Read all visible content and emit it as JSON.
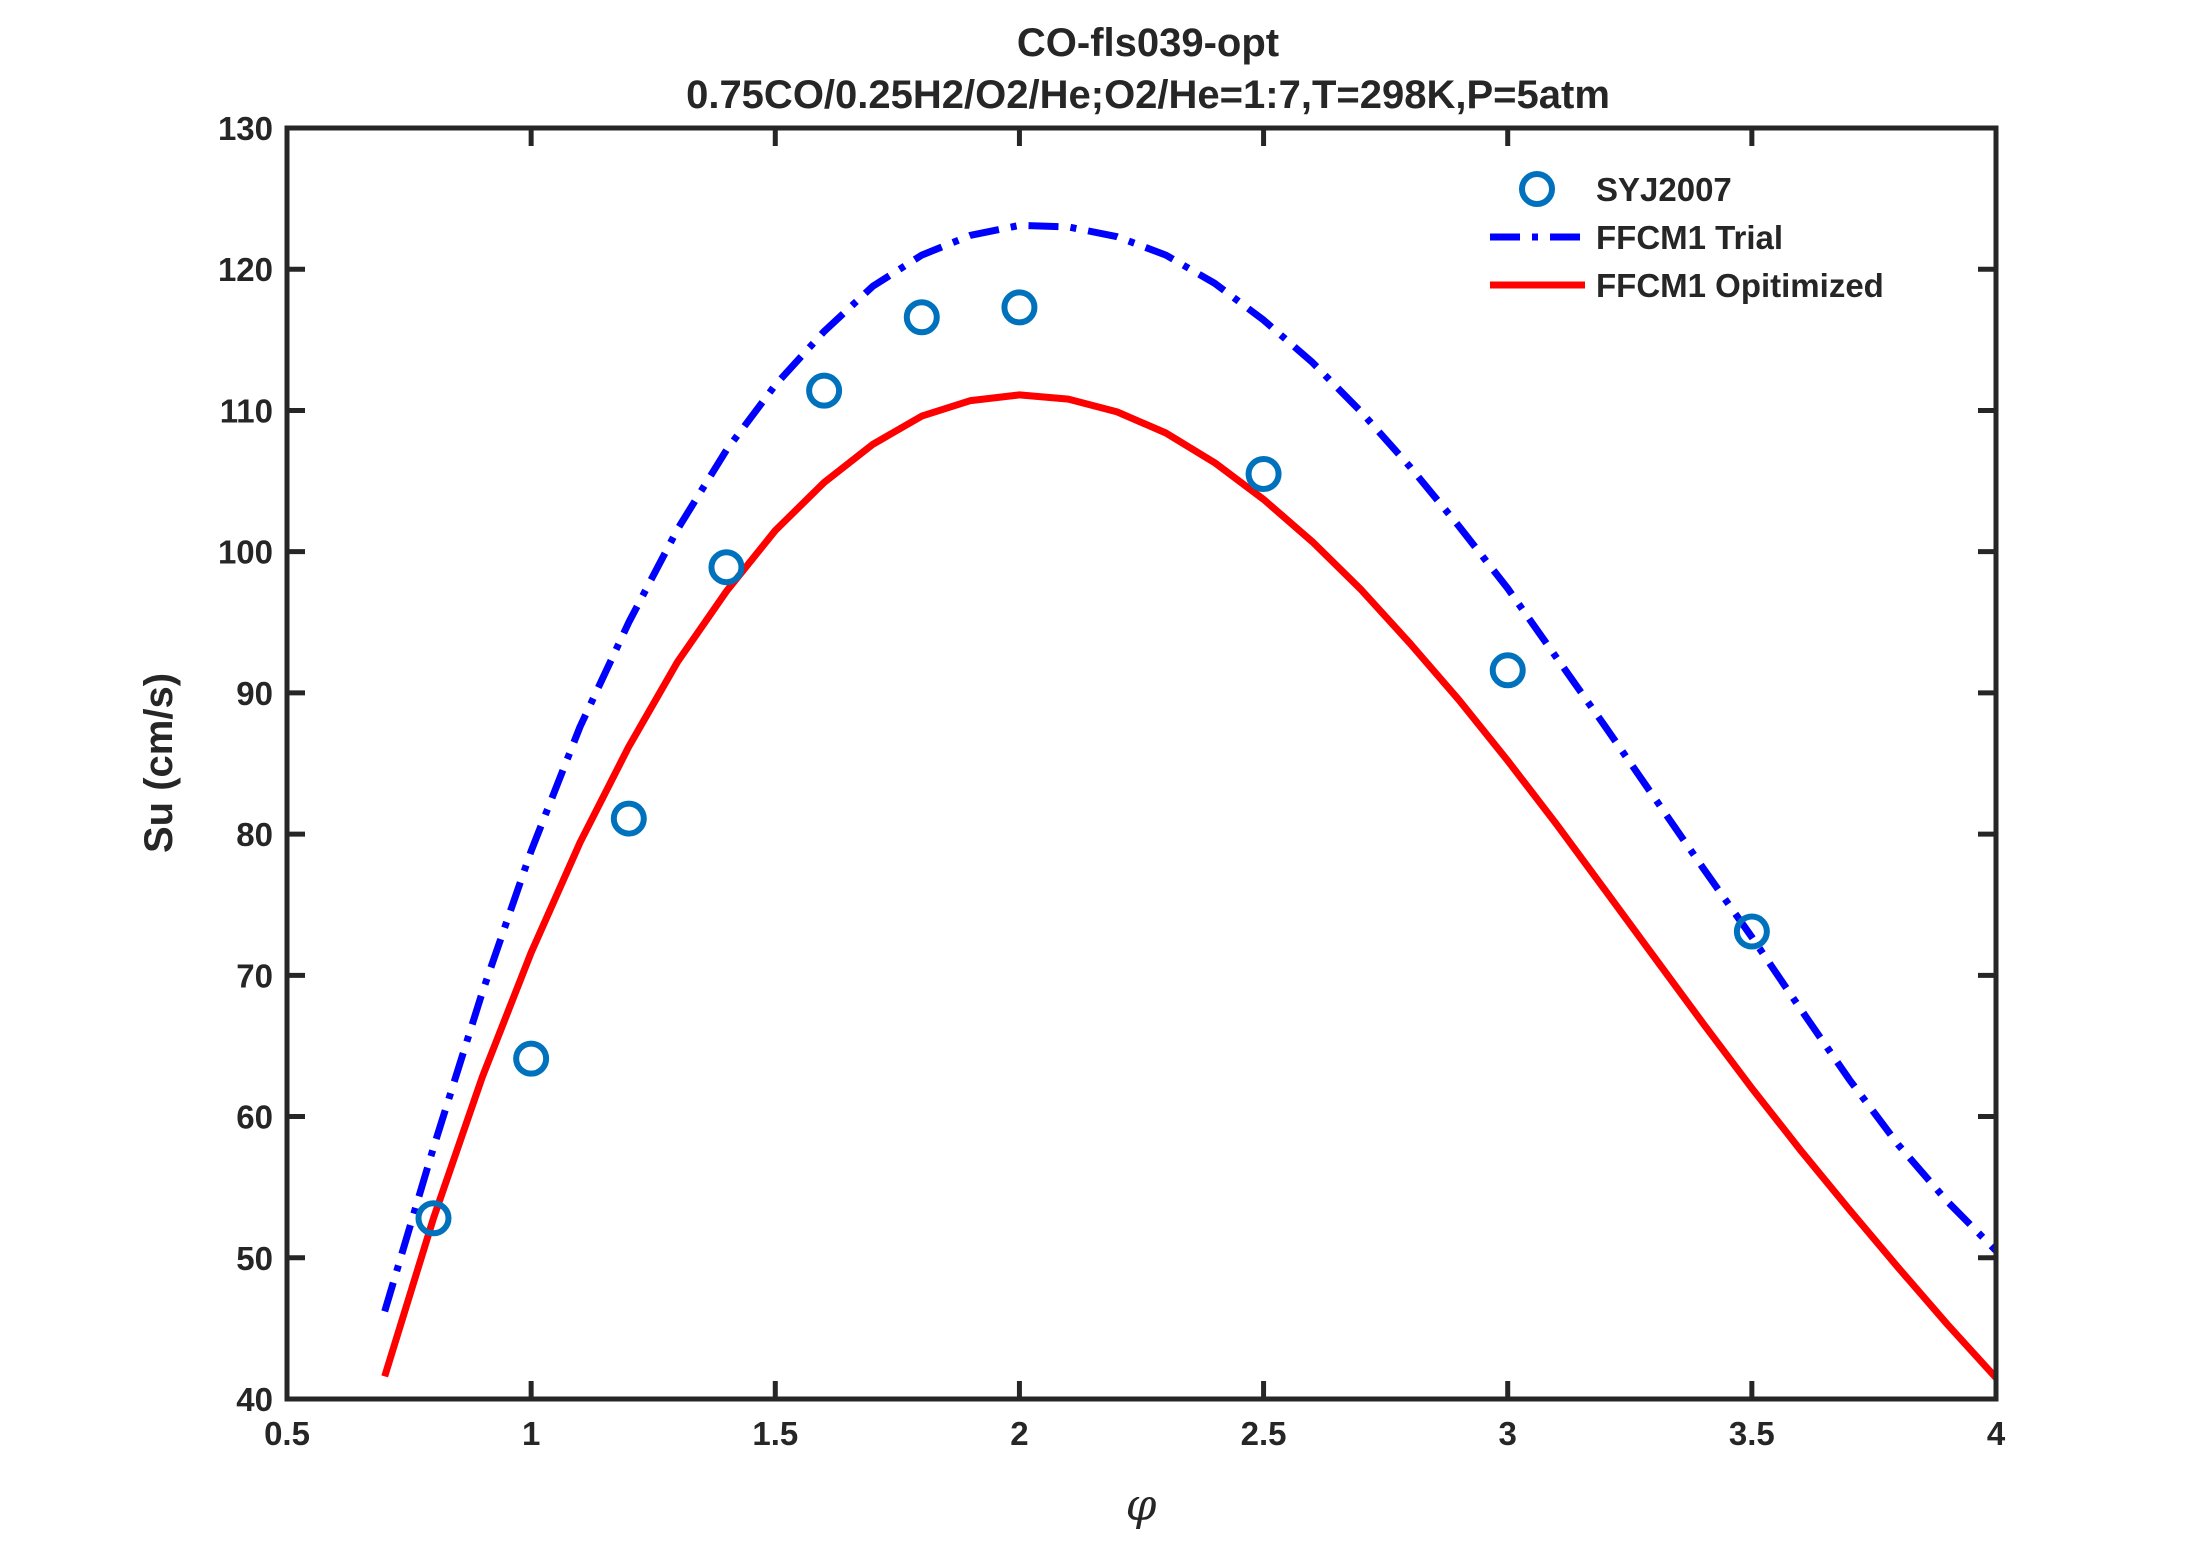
{
  "chart_data": {
    "type": "line",
    "title": "CO-fls039-opt",
    "subtitle": "0.75CO/0.25H2/O2/He;O2/He=1:7,T=298K,P=5atm",
    "xlabel": "φ",
    "ylabel": "Su (cm/s)",
    "xlim": [
      0.5,
      4
    ],
    "ylim": [
      40,
      130
    ],
    "xticks": [
      0.5,
      1,
      1.5,
      2,
      2.5,
      3,
      3.5,
      4
    ],
    "xtick_labels": [
      "0.5",
      "1",
      "1.5",
      "2",
      "2.5",
      "3",
      "3.5",
      "4"
    ],
    "yticks": [
      40,
      50,
      60,
      70,
      80,
      90,
      100,
      110,
      120,
      130
    ],
    "ytick_labels": [
      "40",
      "50",
      "60",
      "70",
      "80",
      "90",
      "100",
      "110",
      "120",
      "130"
    ],
    "grid": false,
    "legend_position": "top-right",
    "series": [
      {
        "name": "SYJ2007",
        "kind": "scatter",
        "marker": "circle",
        "color": "#0072BD",
        "x": [
          0.8,
          1.0,
          1.2,
          1.4,
          1.6,
          1.8,
          2.0,
          2.5,
          3.0,
          3.5
        ],
        "y": [
          52.8,
          64.1,
          81.1,
          98.9,
          111.4,
          116.6,
          117.3,
          105.5,
          91.6,
          73.1
        ]
      },
      {
        "name": "FFCM1 Trial",
        "kind": "line",
        "dash": "dashdot",
        "color": "#0000FF",
        "x": [
          0.7,
          0.8,
          0.9,
          1.0,
          1.1,
          1.2,
          1.3,
          1.4,
          1.5,
          1.6,
          1.7,
          1.8,
          1.9,
          2.0,
          2.1,
          2.2,
          2.3,
          2.4,
          2.5,
          2.6,
          2.7,
          2.8,
          2.9,
          3.0,
          3.1,
          3.2,
          3.3,
          3.4,
          3.5,
          3.6,
          3.7,
          3.8,
          3.9,
          4.0
        ],
        "y": [
          46.2,
          57.8,
          68.8,
          78.8,
          87.6,
          95.0,
          101.6,
          107.2,
          111.8,
          115.6,
          118.8,
          121.0,
          122.4,
          123.1,
          123.0,
          122.3,
          121.0,
          119.0,
          116.4,
          113.4,
          109.9,
          106.0,
          101.8,
          97.4,
          92.5,
          87.6,
          82.6,
          77.6,
          72.7,
          67.6,
          62.6,
          58.0,
          54.0,
          50.5
        ]
      },
      {
        "name": "FFCM1 Opitimized",
        "kind": "line",
        "dash": "solid",
        "color": "#FF0000",
        "x": [
          0.7,
          0.8,
          0.9,
          1.0,
          1.1,
          1.2,
          1.3,
          1.4,
          1.5,
          1.6,
          1.7,
          1.8,
          1.9,
          2.0,
          2.1,
          2.2,
          2.3,
          2.4,
          2.5,
          2.6,
          2.7,
          2.8,
          2.9,
          3.0,
          3.1,
          3.2,
          3.3,
          3.4,
          3.5,
          3.6,
          3.7,
          3.8,
          3.9,
          4.0
        ],
        "y": [
          41.6,
          52.8,
          62.8,
          71.6,
          79.4,
          86.2,
          92.2,
          97.2,
          101.5,
          104.9,
          107.6,
          109.6,
          110.7,
          111.1,
          110.8,
          109.9,
          108.4,
          106.3,
          103.7,
          100.7,
          97.3,
          93.5,
          89.5,
          85.2,
          80.7,
          76.0,
          71.3,
          66.6,
          62.0,
          57.6,
          53.4,
          49.3,
          45.3,
          41.5
        ]
      }
    ]
  }
}
